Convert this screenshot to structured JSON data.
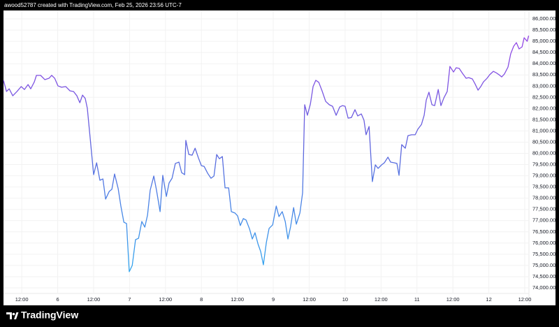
{
  "header": "awood52787 created with TradingView.com, Feb 25, 2026 23:56 UTC-7",
  "brand": "TradingView",
  "chart_data": {
    "type": "line",
    "x": [
      5.9,
      6.9,
      7.8,
      9.0,
      10.4,
      11.8,
      12.9,
      14.1,
      15.0,
      16.2,
      16.9,
      18.3,
      19.7,
      21.1,
      22.0,
      23.0,
      24.1,
      25.3,
      26.7,
      28.1,
      29.3,
      30.4,
      31.4,
      32.3,
      33.2,
      33.9,
      34.9,
      36.0,
      37.0,
      38.1,
      39.1,
      40.0,
      41.2,
      42.1,
      43.0,
      44.2,
      45.1,
      46.1,
      47.0,
      47.9,
      48.9,
      50.0,
      51.0,
      52.1,
      53.1,
      54.0,
      54.9,
      56.1,
      57.0,
      58.2,
      59.1,
      60.3,
      61.2,
      62.2,
      63.3,
      64.5,
      65.4,
      66.4,
      66.8,
      67.8,
      68.9,
      69.9,
      71.0,
      72.0,
      72.9,
      74.1,
      75.2,
      76.2,
      77.1,
      78.0,
      79.0,
      79.9,
      81.1,
      82.0,
      83.2,
      84.1,
      85.0,
      86.0,
      86.9,
      88.1,
      89.0,
      89.9,
      90.9,
      91.8,
      92.7,
      93.7,
      94.6,
      95.8,
      97.0,
      97.9,
      99.0,
      100.0,
      100.9,
      101.8,
      102.8,
      103.7,
      104.9,
      105.8,
      106.5,
      107.4,
      108.4,
      109.3,
      110.2,
      111.2,
      112.3,
      113.5,
      114.7,
      115.8,
      117.0,
      118.2,
      119.1,
      120.0,
      121.0,
      122.1,
      123.3,
      124.2,
      125.4,
      126.3,
      127.0,
      128.0,
      129.1,
      130.1,
      131.0,
      132.2,
      133.1,
      134.3,
      135.2,
      136.4,
      137.3,
      138.0,
      138.9,
      140.1,
      141.0,
      142.2,
      143.4,
      144.3,
      145.5,
      146.4,
      147.1,
      148.0,
      149.0,
      149.9,
      151.1,
      152.0,
      153.0,
      154.1,
      155.0,
      156.2,
      157.1,
      158.1,
      159.2,
      160.4,
      161.3,
      162.5,
      163.4,
      164.4,
      165.3,
      166.2,
      167.4,
      168.3,
      169.5,
      170.4,
      171.4,
      172.3,
      173.2,
      174.4,
      175.3,
      176.3,
      177.2,
      178.1,
      179.1,
      179.8,
      180.8,
      181.3
    ],
    "values": [
      83257,
      82760,
      82880,
      82570,
      82760,
      82980,
      82850,
      83070,
      82880,
      83190,
      83480,
      83480,
      83290,
      83350,
      83480,
      83350,
      83010,
      82950,
      82980,
      82790,
      82760,
      82570,
      82260,
      82600,
      82450,
      82010,
      80610,
      79050,
      79580,
      78800,
      78860,
      77960,
      78300,
      78400,
      79080,
      78430,
      77650,
      76930,
      76870,
      74720,
      75000,
      76150,
      76210,
      76960,
      76710,
      77240,
      78360,
      78990,
      78360,
      77400,
      79020,
      78080,
      78680,
      78890,
      79550,
      79610,
      79140,
      79050,
      80580,
      79950,
      79920,
      80230,
      79800,
      79450,
      79420,
      79110,
      78890,
      78990,
      79950,
      79760,
      79860,
      78460,
      78460,
      77400,
      77340,
      77210,
      76780,
      77090,
      77030,
      76620,
      76180,
      76460,
      75960,
      75620,
      75030,
      76030,
      76650,
      76810,
      77650,
      77180,
      77400,
      76960,
      76180,
      76740,
      77580,
      76840,
      77340,
      78240,
      82170,
      81700,
      82200,
      82980,
      83260,
      83170,
      82790,
      82320,
      82170,
      82100,
      81700,
      82070,
      82130,
      82100,
      81570,
      81600,
      81950,
      81670,
      81760,
      81480,
      80830,
      81200,
      78740,
      79490,
      79330,
      79490,
      79580,
      79830,
      79610,
      79580,
      79550,
      79020,
      80390,
      80230,
      80790,
      80830,
      80830,
      81080,
      81290,
      81700,
      82380,
      82730,
      82170,
      82130,
      82850,
      82130,
      82480,
      82760,
      83880,
      83630,
      83820,
      83790,
      83570,
      83350,
      83380,
      83320,
      83100,
      82820,
      82980,
      83190,
      83350,
      83510,
      83660,
      83600,
      83510,
      83410,
      83540,
      83850,
      84440,
      84780,
      84940,
      84660,
      84750,
      85160,
      85000,
      85250
    ],
    "colors": [
      "#a13fe6",
      "#5d68de",
      "#2bb2f2"
    ],
    "xlim": [
      5.9,
      181.4
    ],
    "ylim": [
      73750,
      86375
    ],
    "grid": true,
    "xticks": [
      {
        "value": 12,
        "label": "12:00"
      },
      {
        "value": 24,
        "label": "6"
      },
      {
        "value": 36,
        "label": "12:00"
      },
      {
        "value": 48,
        "label": "7"
      },
      {
        "value": 60,
        "label": "12:00"
      },
      {
        "value": 72,
        "label": "8"
      },
      {
        "value": 84,
        "label": "12:00"
      },
      {
        "value": 96,
        "label": "9"
      },
      {
        "value": 108,
        "label": "12:00"
      },
      {
        "value": 120,
        "label": "10"
      },
      {
        "value": 132,
        "label": "12:00"
      },
      {
        "value": 144,
        "label": "11"
      },
      {
        "value": 156,
        "label": "12:00"
      },
      {
        "value": 168,
        "label": "12"
      },
      {
        "value": 180,
        "label": "12:00"
      }
    ],
    "yticks": [
      {
        "value": 74000,
        "label": "74,000.00"
      },
      {
        "value": 74500,
        "label": "74,500.00"
      },
      {
        "value": 75000,
        "label": "75,000.00"
      },
      {
        "value": 75500,
        "label": "75,500.00"
      },
      {
        "value": 76000,
        "label": "76,000.00"
      },
      {
        "value": 76500,
        "label": "76,500.00"
      },
      {
        "value": 77000,
        "label": "77,000.00"
      },
      {
        "value": 77500,
        "label": "77,500.00"
      },
      {
        "value": 78000,
        "label": "78,000.00"
      },
      {
        "value": 78500,
        "label": "78,500.00"
      },
      {
        "value": 79000,
        "label": "79,000.00"
      },
      {
        "value": 79500,
        "label": "79,500.00"
      },
      {
        "value": 80000,
        "label": "80,000.00"
      },
      {
        "value": 80500,
        "label": "80,500.00"
      },
      {
        "value": 81000,
        "label": "81,000.00"
      },
      {
        "value": 81500,
        "label": "81,500.00"
      },
      {
        "value": 82000,
        "label": "82,000.00"
      },
      {
        "value": 82500,
        "label": "82,500.00"
      },
      {
        "value": 83000,
        "label": "83,000.00"
      },
      {
        "value": 83500,
        "label": "83,500.00"
      },
      {
        "value": 84000,
        "label": "84,000.00"
      },
      {
        "value": 84500,
        "label": "84,500.00"
      },
      {
        "value": 85000,
        "label": "85,000.00"
      },
      {
        "value": 85500,
        "label": "85,500.00"
      },
      {
        "value": 86000,
        "label": "86,000.00"
      }
    ]
  }
}
